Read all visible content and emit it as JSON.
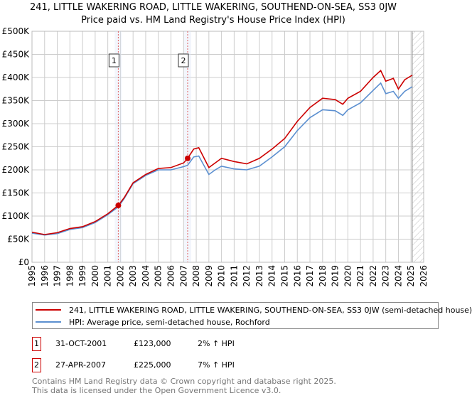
{
  "title": "241, LITTLE WAKERING ROAD, LITTLE WAKERING, SOUTHEND-ON-SEA, SS3 0JW",
  "subtitle": "Price paid vs. HM Land Registry's House Price Index (HPI)",
  "chart_data": {
    "type": "line",
    "ylim": [
      0,
      500000
    ],
    "xlim": [
      1995,
      2026
    ],
    "yticks": [
      0,
      50000,
      100000,
      150000,
      200000,
      250000,
      300000,
      350000,
      400000,
      450000,
      500000
    ],
    "ytick_labels": [
      "£0",
      "£50K",
      "£100K",
      "£150K",
      "£200K",
      "£250K",
      "£300K",
      "£350K",
      "£400K",
      "£450K",
      "£500K"
    ],
    "xticks": [
      1995,
      1996,
      1997,
      1998,
      1999,
      2000,
      2001,
      2002,
      2003,
      2004,
      2005,
      2006,
      2007,
      2008,
      2009,
      2010,
      2011,
      2012,
      2013,
      2014,
      2015,
      2016,
      2017,
      2018,
      2019,
      2020,
      2021,
      2022,
      2023,
      2024,
      2025,
      2026
    ],
    "grid": true,
    "forecast_hatch_from": 2025.1,
    "series": [
      {
        "name": "241, LITTLE WAKERING ROAD, LITTLE WAKERING, SOUTHEND-ON-SEA, SS3 0JW (semi-detached house)",
        "color": "#cc0000",
        "x": [
          1995,
          1996,
          1997,
          1998,
          1999,
          2000,
          2001,
          2001.83,
          2002.3,
          2003,
          2004,
          2005,
          2006,
          2007,
          2007.32,
          2007.8,
          2008.2,
          2009,
          2009.5,
          2010,
          2011,
          2012,
          2013,
          2014,
          2015,
          2016,
          2017,
          2018,
          2019,
          2019.6,
          2020,
          2021,
          2022,
          2022.6,
          2023,
          2023.6,
          2024,
          2024.5,
          2025.1
        ],
        "y": [
          65000,
          60000,
          64000,
          73000,
          77000,
          88000,
          105000,
          123000,
          140000,
          172000,
          190000,
          203000,
          205000,
          215000,
          225000,
          245000,
          248000,
          205000,
          215000,
          225000,
          218000,
          213000,
          225000,
          245000,
          268000,
          305000,
          335000,
          355000,
          352000,
          342000,
          355000,
          370000,
          400000,
          415000,
          392000,
          398000,
          375000,
          395000,
          405000
        ]
      },
      {
        "name": "HPI: Average price, semi-detached house, Rochford",
        "color": "#5b8fd0",
        "x": [
          1995,
          1996,
          1997,
          1998,
          1999,
          2000,
          2001,
          2001.83,
          2002.3,
          2003,
          2004,
          2005,
          2006,
          2007,
          2007.32,
          2007.8,
          2008.2,
          2009,
          2009.5,
          2010,
          2011,
          2012,
          2013,
          2014,
          2015,
          2016,
          2017,
          2018,
          2019,
          2019.6,
          2020,
          2021,
          2022,
          2022.6,
          2023,
          2023.6,
          2024,
          2024.5,
          2025.1
        ],
        "y": [
          63000,
          59000,
          62000,
          71000,
          75000,
          86000,
          103000,
          120000,
          138000,
          170000,
          188000,
          200000,
          200000,
          207000,
          210000,
          228000,
          230000,
          190000,
          200000,
          208000,
          202000,
          200000,
          208000,
          228000,
          250000,
          285000,
          313000,
          330000,
          328000,
          318000,
          330000,
          345000,
          372000,
          388000,
          365000,
          370000,
          355000,
          370000,
          380000
        ]
      }
    ],
    "sales": [
      {
        "label": "1",
        "x": 2001.83,
        "price": 123000,
        "date": "31-OCT-2001",
        "price_text": "£123,000",
        "hpi": "2% ↑ HPI"
      },
      {
        "label": "2",
        "x": 2007.32,
        "price": 225000,
        "date": "27-APR-2007",
        "price_text": "£225,000",
        "hpi": "7% ↑ HPI"
      }
    ]
  },
  "legend": {
    "red": "241, LITTLE WAKERING ROAD, LITTLE WAKERING, SOUTHEND-ON-SEA, SS3 0JW (semi-detached house)",
    "blue": "HPI: Average price, semi-detached house, Rochford"
  },
  "footer": {
    "line1": "Contains HM Land Registry data © Crown copyright and database right 2025.",
    "line2": "This data is licensed under the Open Government Licence v3.0."
  }
}
